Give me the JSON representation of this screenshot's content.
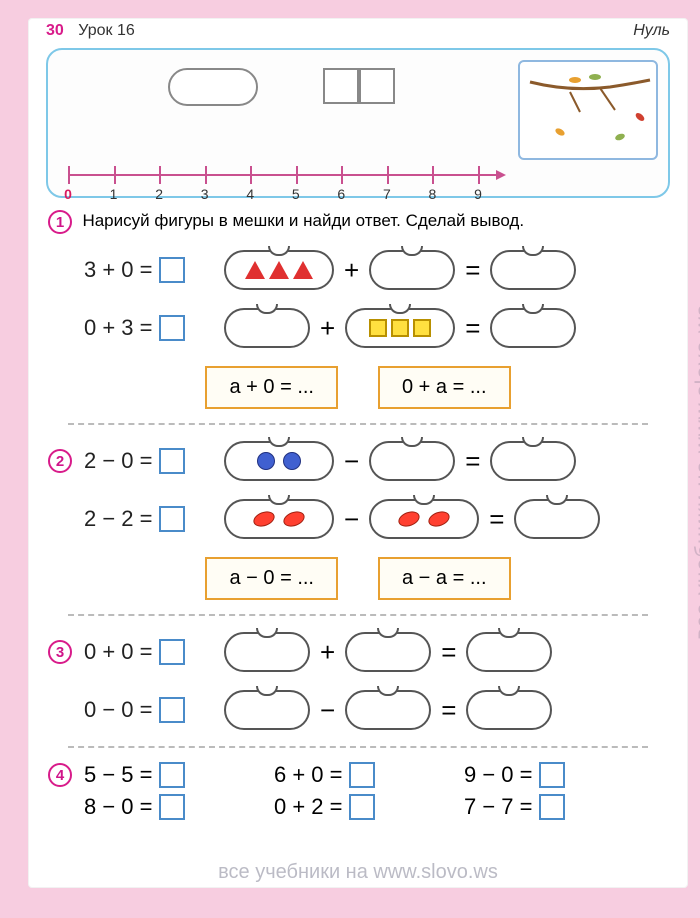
{
  "header": {
    "page_number": "30",
    "lesson_label": "Урок 16",
    "topic": "Нуль"
  },
  "number_line": {
    "ticks": [
      "0",
      "1",
      "2",
      "3",
      "4",
      "5",
      "6",
      "7",
      "8",
      "9"
    ],
    "zero_color": "#d81b60",
    "line_color": "#c9508f"
  },
  "ex1": {
    "marker": "1",
    "instruction": "Нарисуй фигуры в мешки и найди ответ. Сделай вывод.",
    "row1_eq": "3 + 0 =",
    "row1_op": "+",
    "row1_eq2": "=",
    "row2_eq": "0 + 3 =",
    "row2_op": "+",
    "row2_eq2": "=",
    "rule1": "а + 0 = ...",
    "rule2": "0 + а = ...",
    "triangle_color": "#e03030",
    "square_color": "#ffe040"
  },
  "ex2": {
    "marker": "2",
    "row1_eq": "2 − 0 =",
    "row1_op": "−",
    "row1_eq2": "=",
    "row2_eq": "2 − 2 =",
    "row2_op": "−",
    "row2_eq2": "=",
    "rule1": "а − 0 = ...",
    "rule2": "а − а = ...",
    "circle_color": "#4060d0",
    "oval_color": "#ff4030"
  },
  "ex3": {
    "marker": "3",
    "row1_eq": "0 + 0 =",
    "row1_op": "+",
    "row1_eq2": "=",
    "row2_eq": "0 − 0 =",
    "row2_op": "−",
    "row2_eq2": "="
  },
  "ex4": {
    "marker": "4",
    "c1_r1": "5 − 5 =",
    "c1_r2": "8 − 0 =",
    "c2_r1": "6 + 0 =",
    "c2_r2": "0 + 2 =",
    "c3_r1": "9 − 0 =",
    "c3_r2": "7 − 7 ="
  },
  "colors": {
    "answer_box_border": "#4a8bc9",
    "rule_box_border": "#e8a030",
    "panel_border": "#7ec8e8",
    "marker_border": "#d81b8a"
  },
  "watermark": {
    "side": "все учебники на www.slovo.ws",
    "bottom": "все учебники на www.slovo.ws"
  }
}
